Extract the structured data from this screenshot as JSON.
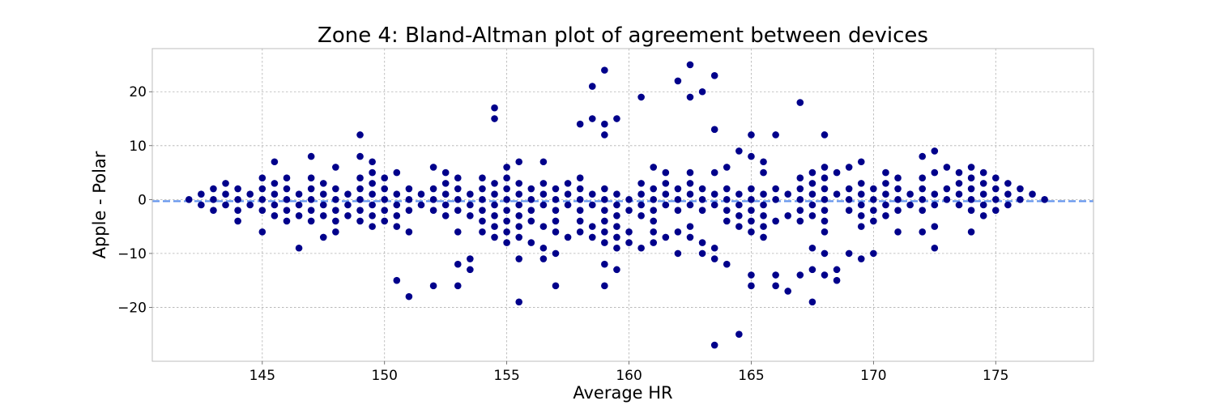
{
  "chart_data": {
    "type": "scatter",
    "title": "Zone 4: Bland-Altman plot of agreement between devices",
    "xlabel": "Average HR",
    "ylabel": "Apple - Polar",
    "xlim": [
      140.5,
      179.0
    ],
    "ylim": [
      -30,
      28
    ],
    "xticks": [
      145,
      150,
      155,
      160,
      165,
      170,
      175
    ],
    "yticks": [
      -20,
      -10,
      0,
      10,
      20
    ],
    "ytick_labels": [
      "−20",
      "−10",
      "0",
      "10",
      "20"
    ],
    "grid": true,
    "mean_line": {
      "y": -0.3,
      "color": "#6495ed",
      "style": "dashed"
    },
    "colors": {
      "points": "#00008b",
      "mean_line": "#6495ed"
    },
    "points": [
      [
        142,
        0
      ],
      [
        142.5,
        1
      ],
      [
        142.5,
        -1
      ],
      [
        143,
        2
      ],
      [
        143,
        0
      ],
      [
        143,
        -2
      ],
      [
        143.5,
        3
      ],
      [
        143.5,
        1
      ],
      [
        143.5,
        -1
      ],
      [
        144,
        2
      ],
      [
        144,
        0
      ],
      [
        144,
        -2
      ],
      [
        144,
        -4
      ],
      [
        144.5,
        1
      ],
      [
        144.5,
        -1
      ],
      [
        145,
        4
      ],
      [
        145,
        2
      ],
      [
        145,
        0
      ],
      [
        145,
        -2
      ],
      [
        145,
        -6
      ],
      [
        145.5,
        7
      ],
      [
        145.5,
        3
      ],
      [
        145.5,
        1
      ],
      [
        145.5,
        -1
      ],
      [
        145.5,
        -3
      ],
      [
        146,
        4
      ],
      [
        146,
        2
      ],
      [
        146,
        0
      ],
      [
        146,
        -2
      ],
      [
        146,
        -4
      ],
      [
        146.5,
        1
      ],
      [
        146.5,
        -1
      ],
      [
        146.5,
        -3
      ],
      [
        146.5,
        -9
      ],
      [
        147,
        8
      ],
      [
        147,
        4
      ],
      [
        147,
        2
      ],
      [
        147,
        0
      ],
      [
        147,
        -2
      ],
      [
        147,
        -4
      ],
      [
        147.5,
        3
      ],
      [
        147.5,
        1
      ],
      [
        147.5,
        -1
      ],
      [
        147.5,
        -3
      ],
      [
        147.5,
        -7
      ],
      [
        148,
        6
      ],
      [
        148,
        2
      ],
      [
        148,
        0
      ],
      [
        148,
        -2
      ],
      [
        148,
        -4
      ],
      [
        148,
        -6
      ],
      [
        148.5,
        1
      ],
      [
        148.5,
        -1
      ],
      [
        148.5,
        -3
      ],
      [
        149,
        12
      ],
      [
        149,
        8
      ],
      [
        149,
        4
      ],
      [
        149,
        2
      ],
      [
        149,
        0
      ],
      [
        149,
        -2
      ],
      [
        149,
        -4
      ],
      [
        149.5,
        7
      ],
      [
        149.5,
        5
      ],
      [
        149.5,
        3
      ],
      [
        149.5,
        1
      ],
      [
        149.5,
        -1
      ],
      [
        149.5,
        -3
      ],
      [
        149.5,
        -5
      ],
      [
        150,
        4
      ],
      [
        150,
        2
      ],
      [
        150,
        0
      ],
      [
        150,
        -2
      ],
      [
        150,
        -4
      ],
      [
        150.5,
        5
      ],
      [
        150.5,
        1
      ],
      [
        150.5,
        -1
      ],
      [
        150.5,
        -3
      ],
      [
        150.5,
        -5
      ],
      [
        150.5,
        -15
      ],
      [
        151,
        2
      ],
      [
        151,
        0
      ],
      [
        151,
        -2
      ],
      [
        151,
        -6
      ],
      [
        151,
        -18
      ],
      [
        151.5,
        1
      ],
      [
        151.5,
        -1
      ],
      [
        152,
        6
      ],
      [
        152,
        2
      ],
      [
        152,
        0
      ],
      [
        152,
        -2
      ],
      [
        152,
        -16
      ],
      [
        152.5,
        5
      ],
      [
        152.5,
        3
      ],
      [
        152.5,
        1
      ],
      [
        152.5,
        -1
      ],
      [
        152.5,
        -3
      ],
      [
        153,
        4
      ],
      [
        153,
        2
      ],
      [
        153,
        0
      ],
      [
        153,
        -2
      ],
      [
        153,
        -6
      ],
      [
        153,
        -12
      ],
      [
        153,
        -16
      ],
      [
        153.5,
        1
      ],
      [
        153.5,
        -1
      ],
      [
        153.5,
        -3
      ],
      [
        153.5,
        -11
      ],
      [
        153.5,
        -13
      ],
      [
        154,
        4
      ],
      [
        154,
        2
      ],
      [
        154,
        0
      ],
      [
        154,
        -2
      ],
      [
        154,
        -4
      ],
      [
        154,
        -6
      ],
      [
        154.5,
        17
      ],
      [
        154.5,
        15
      ],
      [
        154.5,
        3
      ],
      [
        154.5,
        1
      ],
      [
        154.5,
        -1
      ],
      [
        154.5,
        -3
      ],
      [
        154.5,
        -5
      ],
      [
        154.5,
        -7
      ],
      [
        155,
        6
      ],
      [
        155,
        4
      ],
      [
        155,
        2
      ],
      [
        155,
        0
      ],
      [
        155,
        -2
      ],
      [
        155,
        -4
      ],
      [
        155,
        -6
      ],
      [
        155,
        -8
      ],
      [
        155.5,
        7
      ],
      [
        155.5,
        3
      ],
      [
        155.5,
        1
      ],
      [
        155.5,
        -1
      ],
      [
        155.5,
        -3
      ],
      [
        155.5,
        -5
      ],
      [
        155.5,
        -7
      ],
      [
        155.5,
        -11
      ],
      [
        155.5,
        -19
      ],
      [
        156,
        2
      ],
      [
        156,
        0
      ],
      [
        156,
        -2
      ],
      [
        156,
        -4
      ],
      [
        156,
        -8
      ],
      [
        156.5,
        7
      ],
      [
        156.5,
        3
      ],
      [
        156.5,
        1
      ],
      [
        156.5,
        -1
      ],
      [
        156.5,
        -5
      ],
      [
        156.5,
        -9
      ],
      [
        156.5,
        -11
      ],
      [
        157,
        2
      ],
      [
        157,
        0
      ],
      [
        157,
        -2
      ],
      [
        157,
        -4
      ],
      [
        157,
        -6
      ],
      [
        157,
        -10
      ],
      [
        157,
        -16
      ],
      [
        157.5,
        3
      ],
      [
        157.5,
        1
      ],
      [
        157.5,
        -1
      ],
      [
        157.5,
        -7
      ],
      [
        158,
        14
      ],
      [
        158,
        4
      ],
      [
        158,
        2
      ],
      [
        158,
        0
      ],
      [
        158,
        -2
      ],
      [
        158,
        -4
      ],
      [
        158,
        -6
      ],
      [
        158.5,
        21
      ],
      [
        158.5,
        15
      ],
      [
        158.5,
        1
      ],
      [
        158.5,
        -1
      ],
      [
        158.5,
        -5
      ],
      [
        158.5,
        -7
      ],
      [
        159,
        24
      ],
      [
        159,
        14
      ],
      [
        159,
        12
      ],
      [
        159,
        2
      ],
      [
        159,
        0
      ],
      [
        159,
        -2
      ],
      [
        159,
        -4
      ],
      [
        159,
        -6
      ],
      [
        159,
        -8
      ],
      [
        159,
        -12
      ],
      [
        159,
        -16
      ],
      [
        159.5,
        15
      ],
      [
        159.5,
        1
      ],
      [
        159.5,
        -1
      ],
      [
        159.5,
        -3
      ],
      [
        159.5,
        -5
      ],
      [
        159.5,
        -7
      ],
      [
        159.5,
        -9
      ],
      [
        159.5,
        -13
      ],
      [
        160,
        0
      ],
      [
        160,
        -2
      ],
      [
        160,
        -6
      ],
      [
        160,
        -8
      ],
      [
        160.5,
        19
      ],
      [
        160.5,
        3
      ],
      [
        160.5,
        1
      ],
      [
        160.5,
        -1
      ],
      [
        160.5,
        -3
      ],
      [
        160.5,
        -9
      ],
      [
        161,
        6
      ],
      [
        161,
        2
      ],
      [
        161,
        0
      ],
      [
        161,
        -2
      ],
      [
        161,
        -4
      ],
      [
        161,
        -6
      ],
      [
        161,
        -8
      ],
      [
        161.5,
        5
      ],
      [
        161.5,
        3
      ],
      [
        161.5,
        1
      ],
      [
        161.5,
        -1
      ],
      [
        161.5,
        -7
      ],
      [
        162,
        22
      ],
      [
        162,
        2
      ],
      [
        162,
        0
      ],
      [
        162,
        -2
      ],
      [
        162,
        -6
      ],
      [
        162,
        -10
      ],
      [
        162.5,
        25
      ],
      [
        162.5,
        19
      ],
      [
        162.5,
        5
      ],
      [
        162.5,
        3
      ],
      [
        162.5,
        1
      ],
      [
        162.5,
        -1
      ],
      [
        162.5,
        -5
      ],
      [
        162.5,
        -7
      ],
      [
        163,
        20
      ],
      [
        163,
        2
      ],
      [
        163,
        0
      ],
      [
        163,
        -2
      ],
      [
        163,
        -8
      ],
      [
        163,
        -10
      ],
      [
        163.5,
        23
      ],
      [
        163.5,
        13
      ],
      [
        163.5,
        5
      ],
      [
        163.5,
        1
      ],
      [
        163.5,
        -1
      ],
      [
        163.5,
        -9
      ],
      [
        163.5,
        -11
      ],
      [
        163.5,
        -27
      ],
      [
        164,
        6
      ],
      [
        164,
        2
      ],
      [
        164,
        0
      ],
      [
        164,
        -2
      ],
      [
        164,
        -4
      ],
      [
        164,
        -12
      ],
      [
        164.5,
        9
      ],
      [
        164.5,
        1
      ],
      [
        164.5,
        -1
      ],
      [
        164.5,
        -3
      ],
      [
        164.5,
        -5
      ],
      [
        164.5,
        -25
      ],
      [
        165,
        12
      ],
      [
        165,
        8
      ],
      [
        165,
        2
      ],
      [
        165,
        0
      ],
      [
        165,
        -2
      ],
      [
        165,
        -4
      ],
      [
        165,
        -6
      ],
      [
        165,
        -14
      ],
      [
        165,
        -16
      ],
      [
        165.5,
        7
      ],
      [
        165.5,
        5
      ],
      [
        165.5,
        1
      ],
      [
        165.5,
        -1
      ],
      [
        165.5,
        -3
      ],
      [
        165.5,
        -5
      ],
      [
        165.5,
        -7
      ],
      [
        166,
        12
      ],
      [
        166,
        2
      ],
      [
        166,
        0
      ],
      [
        166,
        -4
      ],
      [
        166,
        -14
      ],
      [
        166,
        -16
      ],
      [
        166.5,
        1
      ],
      [
        166.5,
        -3
      ],
      [
        166.5,
        -17
      ],
      [
        167,
        18
      ],
      [
        167,
        4
      ],
      [
        167,
        2
      ],
      [
        167,
        0
      ],
      [
        167,
        -2
      ],
      [
        167,
        -4
      ],
      [
        167,
        -14
      ],
      [
        167.5,
        5
      ],
      [
        167.5,
        3
      ],
      [
        167.5,
        1
      ],
      [
        167.5,
        -1
      ],
      [
        167.5,
        -3
      ],
      [
        167.5,
        -9
      ],
      [
        167.5,
        -13
      ],
      [
        167.5,
        -19
      ],
      [
        168,
        12
      ],
      [
        168,
        6
      ],
      [
        168,
        4
      ],
      [
        168,
        2
      ],
      [
        168,
        0
      ],
      [
        168,
        -2
      ],
      [
        168,
        -4
      ],
      [
        168,
        -6
      ],
      [
        168,
        -10
      ],
      [
        168,
        -14
      ],
      [
        168.5,
        5
      ],
      [
        168.5,
        1
      ],
      [
        168.5,
        -13
      ],
      [
        168.5,
        -15
      ],
      [
        169,
        6
      ],
      [
        169,
        2
      ],
      [
        169,
        0
      ],
      [
        169,
        -2
      ],
      [
        169,
        -10
      ],
      [
        169.5,
        7
      ],
      [
        169.5,
        3
      ],
      [
        169.5,
        1
      ],
      [
        169.5,
        -1
      ],
      [
        169.5,
        -3
      ],
      [
        169.5,
        -5
      ],
      [
        169.5,
        -11
      ],
      [
        170,
        2
      ],
      [
        170,
        0
      ],
      [
        170,
        -2
      ],
      [
        170,
        -4
      ],
      [
        170,
        -10
      ],
      [
        170.5,
        5
      ],
      [
        170.5,
        3
      ],
      [
        170.5,
        1
      ],
      [
        170.5,
        -1
      ],
      [
        170.5,
        -3
      ],
      [
        171,
        4
      ],
      [
        171,
        2
      ],
      [
        171,
        0
      ],
      [
        171,
        -2
      ],
      [
        171,
        -6
      ],
      [
        171.5,
        1
      ],
      [
        171.5,
        -1
      ],
      [
        172,
        8
      ],
      [
        172,
        4
      ],
      [
        172,
        2
      ],
      [
        172,
        0
      ],
      [
        172,
        -2
      ],
      [
        172,
        -6
      ],
      [
        172.5,
        9
      ],
      [
        172.5,
        5
      ],
      [
        172.5,
        1
      ],
      [
        172.5,
        -1
      ],
      [
        172.5,
        -5
      ],
      [
        172.5,
        -9
      ],
      [
        173,
        6
      ],
      [
        173,
        2
      ],
      [
        173,
        0
      ],
      [
        173.5,
        5
      ],
      [
        173.5,
        3
      ],
      [
        173.5,
        1
      ],
      [
        173.5,
        -1
      ],
      [
        174,
        6
      ],
      [
        174,
        4
      ],
      [
        174,
        2
      ],
      [
        174,
        0
      ],
      [
        174,
        -2
      ],
      [
        174,
        -6
      ],
      [
        174.5,
        5
      ],
      [
        174.5,
        3
      ],
      [
        174.5,
        1
      ],
      [
        174.5,
        -1
      ],
      [
        174.5,
        -3
      ],
      [
        175,
        4
      ],
      [
        175,
        2
      ],
      [
        175,
        0
      ],
      [
        175,
        -2
      ],
      [
        175.5,
        3
      ],
      [
        175.5,
        1
      ],
      [
        175.5,
        -1
      ],
      [
        176,
        2
      ],
      [
        176,
        0
      ],
      [
        176.5,
        1
      ],
      [
        177,
        0
      ]
    ]
  }
}
